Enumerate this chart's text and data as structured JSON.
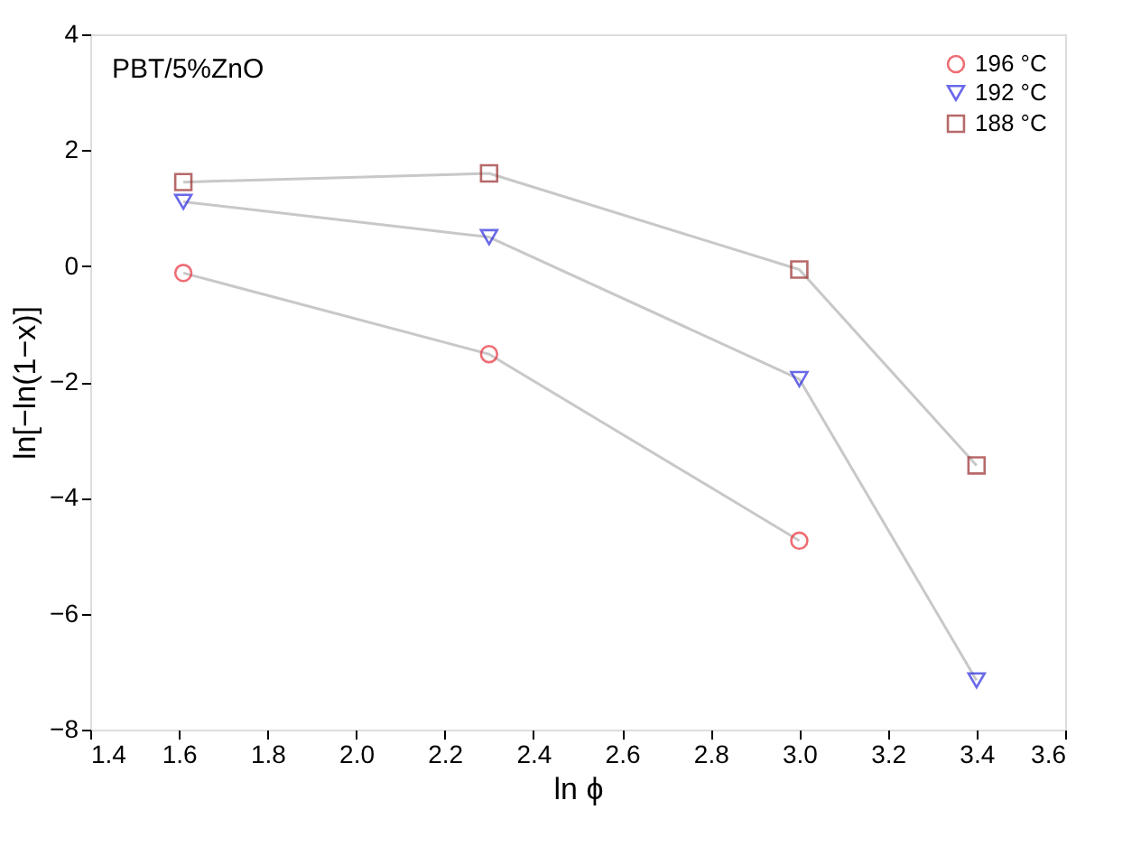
{
  "chart_data": {
    "type": "line",
    "xlabel": "ln ϕ",
    "ylabel": "ln[−ln(1−x)]",
    "annotations": [
      "PBT/5%ZnO"
    ],
    "xlim": [
      1.4,
      3.6
    ],
    "xticks": [
      {
        "value": 1.4,
        "label": "1.4"
      },
      {
        "value": 1.6,
        "label": "1.6"
      },
      {
        "value": 1.8,
        "label": "1.8"
      },
      {
        "value": 2.0,
        "label": "2.0"
      },
      {
        "value": 2.2,
        "label": "2.2"
      },
      {
        "value": 2.4,
        "label": "2.4"
      },
      {
        "value": 2.6,
        "label": "2.6"
      },
      {
        "value": 2.8,
        "label": "2.8"
      },
      {
        "value": 3.0,
        "label": "3.0"
      },
      {
        "value": 3.2,
        "label": "3.2"
      },
      {
        "value": 3.4,
        "label": "3.4"
      },
      {
        "value": 3.6,
        "label": "3.6"
      }
    ],
    "ylim": [
      -8,
      4
    ],
    "yticks": [
      -8,
      -6,
      -4,
      -2,
      0,
      2,
      4
    ],
    "grid": false,
    "legend": "top right",
    "series": [
      {
        "name": "196 °C",
        "color": "#e8303a",
        "marker": "circle",
        "x": [
          1.61,
          2.3,
          3.0
        ],
        "values": [
          -0.12,
          -1.52,
          -4.74
        ]
      },
      {
        "name": "192 °C",
        "color": "#2a2ae0",
        "marker": "triangle",
        "x": [
          1.61,
          2.3,
          3.0,
          3.4
        ],
        "values": [
          1.11,
          0.5,
          -1.95,
          -7.15
        ]
      },
      {
        "name": "188 °C",
        "color": "#9a2a2a",
        "marker": "square",
        "x": [
          1.61,
          2.3,
          3.0,
          3.4
        ],
        "values": [
          1.45,
          1.6,
          -0.06,
          -3.44
        ]
      }
    ]
  }
}
